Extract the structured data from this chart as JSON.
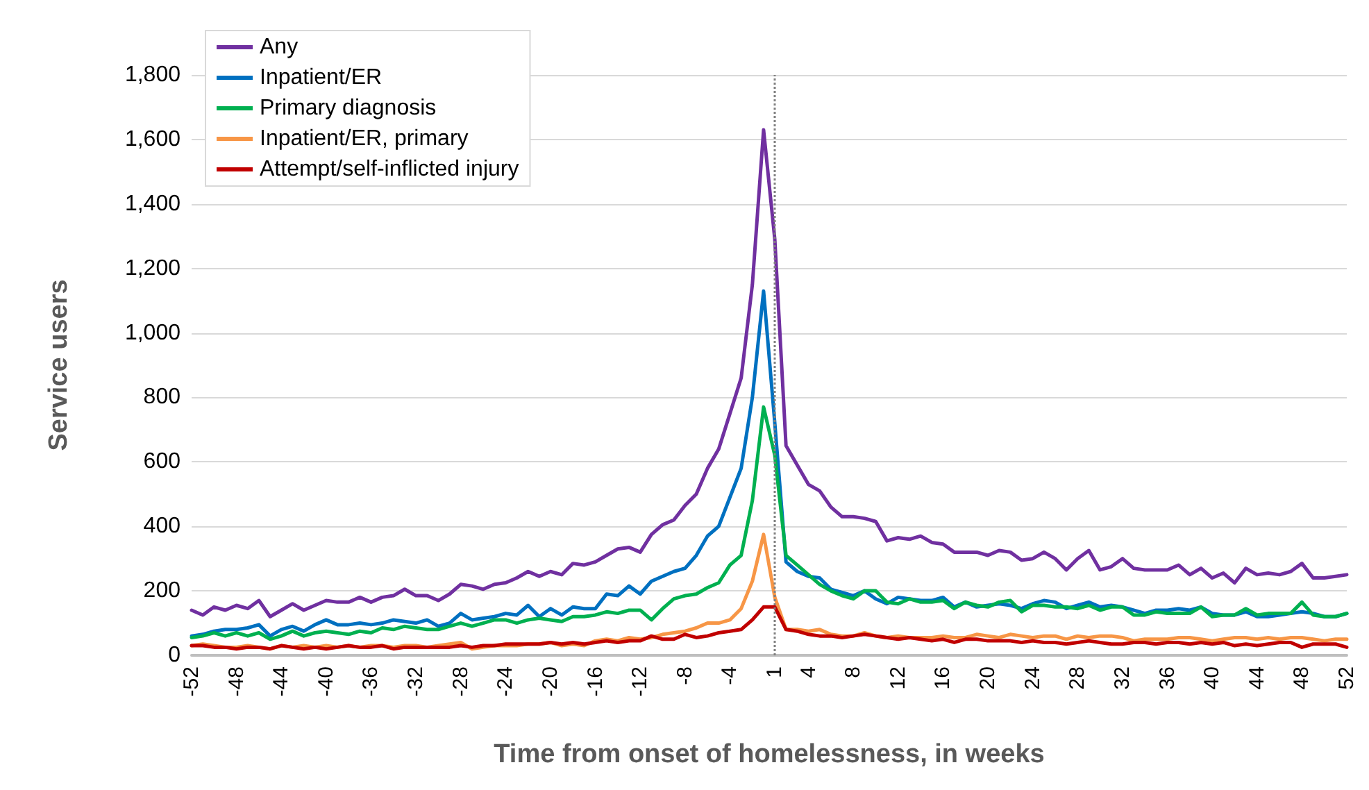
{
  "chart_data": {
    "type": "line",
    "xlabel": "Time from onset of homelessness, in weeks",
    "ylabel": "Service users",
    "categories": [
      "-52",
      null,
      null,
      null,
      "-48",
      null,
      null,
      null,
      "-44",
      null,
      null,
      null,
      "-40",
      null,
      null,
      null,
      "-36",
      null,
      null,
      null,
      "-32",
      null,
      null,
      null,
      "-28",
      null,
      null,
      null,
      "-24",
      null,
      null,
      null,
      "-20",
      null,
      null,
      null,
      "-16",
      null,
      null,
      null,
      "-12",
      null,
      null,
      null,
      "-8",
      null,
      null,
      null,
      "-4",
      null,
      null,
      null,
      "1",
      null,
      null,
      "4",
      null,
      null,
      null,
      "8",
      null,
      null,
      null,
      "12",
      null,
      null,
      null,
      "16",
      null,
      null,
      null,
      "20",
      null,
      null,
      null,
      "24",
      null,
      null,
      null,
      "28",
      null,
      null,
      null,
      "32",
      null,
      null,
      null,
      "36",
      null,
      null,
      null,
      "40",
      null,
      null,
      null,
      "44",
      null,
      null,
      null,
      "48",
      null,
      null,
      null,
      "52"
    ],
    "series": [
      {
        "name": "Any",
        "color": "#7030a0",
        "values": [
          140,
          125,
          150,
          140,
          155,
          145,
          170,
          120,
          140,
          160,
          140,
          155,
          170,
          165,
          165,
          180,
          165,
          180,
          185,
          205,
          185,
          185,
          170,
          190,
          220,
          215,
          205,
          220,
          225,
          240,
          260,
          245,
          260,
          250,
          285,
          280,
          290,
          310,
          330,
          335,
          320,
          375,
          405,
          420,
          465,
          500,
          580,
          640,
          750,
          860,
          1150,
          1630,
          1290,
          650,
          590,
          530,
          510,
          460,
          430,
          430,
          425,
          415,
          355,
          365,
          360,
          370,
          350,
          345,
          320,
          320,
          320,
          310,
          325,
          320,
          295,
          300,
          320,
          300,
          265,
          300,
          325,
          265,
          275,
          300,
          270,
          265,
          265,
          265,
          280,
          250,
          270,
          240,
          255,
          225,
          270,
          250,
          255,
          250,
          260,
          285,
          240,
          240,
          245,
          250
        ]
      },
      {
        "name": "Inpatient/ER",
        "color": "#0070c0",
        "values": [
          60,
          65,
          75,
          80,
          80,
          85,
          95,
          60,
          80,
          90,
          75,
          95,
          110,
          95,
          95,
          100,
          95,
          100,
          110,
          105,
          100,
          110,
          90,
          100,
          130,
          110,
          115,
          120,
          130,
          125,
          155,
          120,
          145,
          125,
          150,
          145,
          145,
          190,
          185,
          215,
          190,
          230,
          245,
          260,
          270,
          310,
          370,
          400,
          490,
          580,
          800,
          1130,
          720,
          290,
          260,
          245,
          240,
          205,
          195,
          185,
          200,
          175,
          160,
          180,
          175,
          170,
          170,
          180,
          150,
          165,
          150,
          155,
          160,
          155,
          145,
          160,
          170,
          165,
          145,
          155,
          165,
          150,
          155,
          150,
          140,
          130,
          140,
          140,
          145,
          140,
          150,
          130,
          125,
          125,
          135,
          120,
          120,
          125,
          130,
          135,
          130,
          120,
          120,
          130
        ]
      },
      {
        "name": "Primary diagnosis",
        "color": "#00b050",
        "values": [
          55,
          60,
          70,
          60,
          70,
          60,
          70,
          50,
          60,
          75,
          60,
          70,
          75,
          70,
          65,
          75,
          70,
          85,
          80,
          90,
          85,
          80,
          80,
          90,
          100,
          90,
          100,
          110,
          110,
          100,
          110,
          115,
          110,
          105,
          120,
          120,
          125,
          135,
          130,
          140,
          140,
          110,
          145,
          175,
          185,
          190,
          210,
          225,
          280,
          310,
          480,
          770,
          620,
          310,
          280,
          250,
          220,
          200,
          185,
          175,
          200,
          200,
          165,
          160,
          175,
          165,
          165,
          170,
          145,
          165,
          155,
          150,
          165,
          170,
          135,
          155,
          155,
          150,
          150,
          145,
          155,
          140,
          150,
          150,
          125,
          125,
          135,
          130,
          130,
          130,
          150,
          120,
          125,
          125,
          145,
          125,
          130,
          130,
          130,
          165,
          125,
          120,
          120,
          130
        ]
      },
      {
        "name": "Inpatient/ER, primary",
        "color": "#f79646",
        "values": [
          30,
          35,
          30,
          25,
          25,
          30,
          25,
          20,
          30,
          25,
          30,
          25,
          30,
          25,
          30,
          25,
          30,
          30,
          25,
          30,
          30,
          25,
          30,
          35,
          40,
          20,
          25,
          30,
          30,
          30,
          35,
          35,
          40,
          30,
          35,
          30,
          45,
          50,
          45,
          55,
          50,
          55,
          65,
          70,
          75,
          85,
          100,
          100,
          110,
          145,
          230,
          375,
          180,
          80,
          80,
          75,
          80,
          65,
          60,
          60,
          70,
          60,
          55,
          60,
          55,
          55,
          55,
          60,
          55,
          55,
          65,
          60,
          55,
          65,
          60,
          55,
          60,
          60,
          50,
          60,
          55,
          60,
          60,
          55,
          45,
          50,
          50,
          50,
          55,
          55,
          50,
          45,
          50,
          55,
          55,
          50,
          55,
          50,
          55,
          55,
          50,
          45,
          50,
          50
        ]
      },
      {
        "name": "Attempt/self-inflicted injury",
        "color": "#c00000",
        "values": [
          30,
          30,
          25,
          25,
          20,
          25,
          25,
          20,
          30,
          25,
          20,
          25,
          20,
          25,
          30,
          25,
          25,
          30,
          20,
          25,
          25,
          25,
          25,
          25,
          30,
          25,
          30,
          30,
          35,
          35,
          35,
          35,
          40,
          35,
          40,
          35,
          40,
          45,
          40,
          45,
          45,
          60,
          50,
          50,
          65,
          55,
          60,
          70,
          75,
          80,
          110,
          150,
          150,
          80,
          75,
          65,
          60,
          60,
          55,
          60,
          65,
          60,
          55,
          50,
          55,
          50,
          45,
          50,
          40,
          50,
          50,
          45,
          45,
          45,
          40,
          45,
          40,
          40,
          35,
          40,
          45,
          40,
          35,
          35,
          40,
          40,
          35,
          40,
          40,
          35,
          40,
          35,
          40,
          30,
          35,
          30,
          35,
          40,
          40,
          25,
          35,
          35,
          35,
          25
        ]
      }
    ],
    "ylim": [
      0,
      1800
    ],
    "yticks": [
      0,
      200,
      400,
      600,
      800,
      {
        "value": 1000,
        "label": "1,000"
      },
      {
        "value": 1200,
        "label": "1,200"
      },
      {
        "value": 1400,
        "label": "1,400"
      },
      {
        "value": 1600,
        "label": "1,600"
      },
      {
        "value": 1800,
        "label": "1,800"
      }
    ],
    "ref_lines": [
      {
        "axis": "x",
        "value": "1",
        "line_style": "dotted",
        "color": "#808080"
      }
    ],
    "grid": "y",
    "legend": "top left",
    "marker": "none",
    "line_style": "solid"
  }
}
